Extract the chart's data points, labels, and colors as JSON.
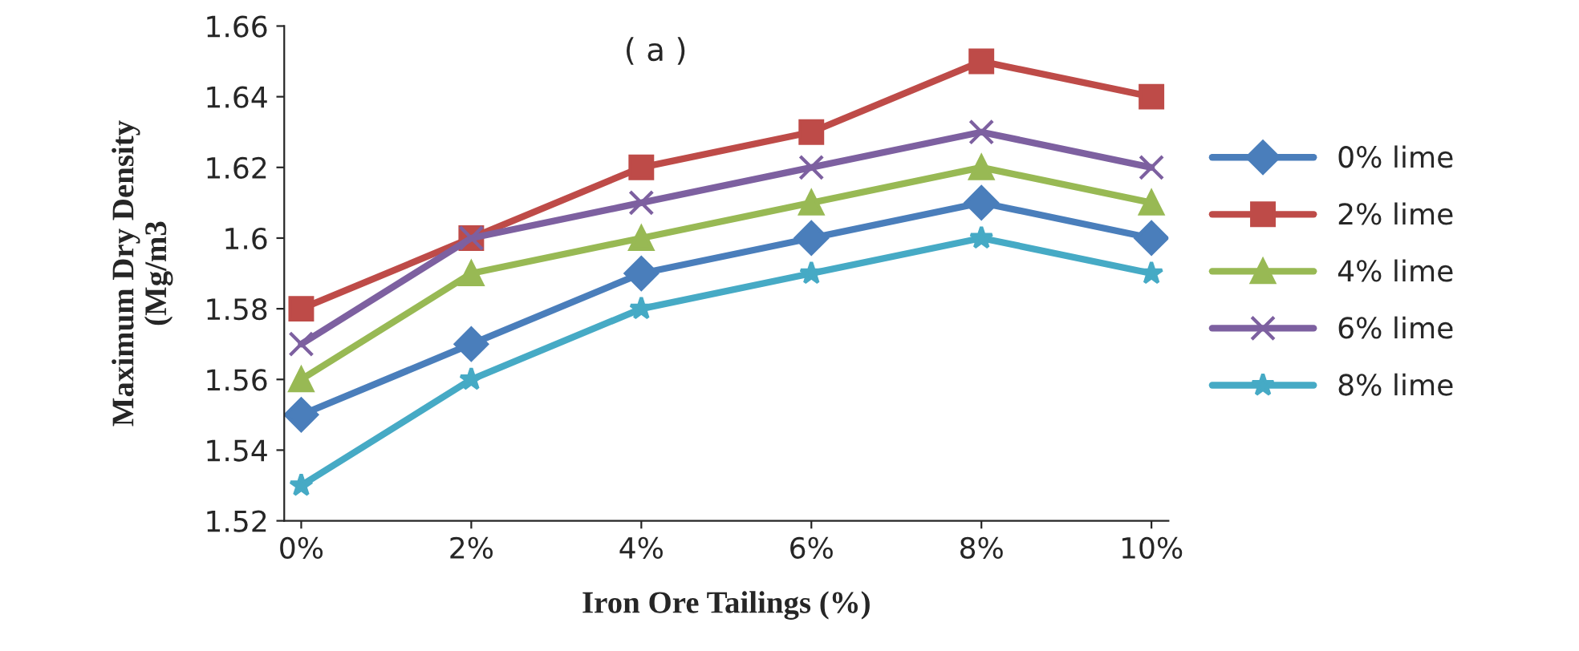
{
  "chart_data": {
    "type": "line",
    "xlabel": "Iron Ore Tailings (%)",
    "ylabel": "Maximum Dry Density\n(Mg/m3",
    "annotations": [
      "( a )"
    ],
    "categories": [
      "0%",
      "2%",
      "4%",
      "6%",
      "8%",
      "10%"
    ],
    "series": [
      {
        "name": "0% lime",
        "color": "#4a7ebb",
        "marker": "diamond",
        "values": [
          1.55,
          1.57,
          1.59,
          1.6,
          1.61,
          1.6
        ]
      },
      {
        "name": "2% lime",
        "color": "#be4b48",
        "marker": "square",
        "values": [
          1.58,
          1.6,
          1.62,
          1.63,
          1.65,
          1.64
        ]
      },
      {
        "name": "4% lime",
        "color": "#98b954",
        "marker": "triangle",
        "values": [
          1.56,
          1.59,
          1.6,
          1.61,
          1.62,
          1.61
        ]
      },
      {
        "name": "6% lime",
        "color": "#7d60a0",
        "marker": "cross",
        "values": [
          1.57,
          1.6,
          1.61,
          1.62,
          1.63,
          1.62
        ]
      },
      {
        "name": "8% lime",
        "color": "#46aac5",
        "marker": "star",
        "values": [
          1.53,
          1.56,
          1.58,
          1.59,
          1.6,
          1.59
        ]
      }
    ],
    "ylim": [
      1.52,
      1.66
    ],
    "yticks": [
      1.52,
      1.54,
      1.56,
      1.58,
      1.6,
      1.62,
      1.64,
      1.66
    ],
    "grid": false,
    "legend": "right",
    "line_style": "solid"
  }
}
